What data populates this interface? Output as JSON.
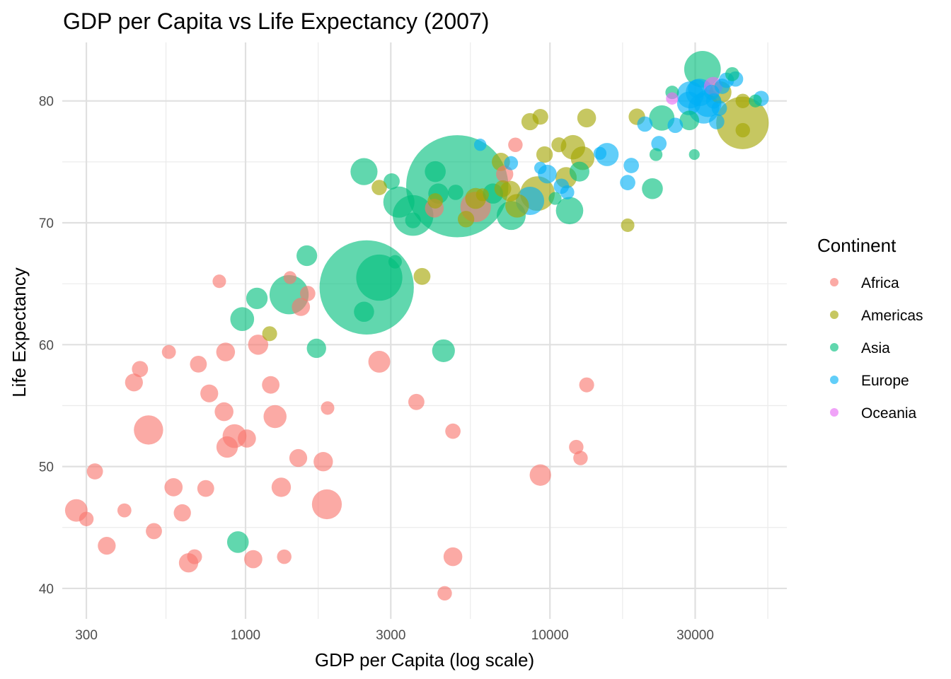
{
  "chart_data": {
    "type": "scatter",
    "title": "GDP per Capita vs Life Expectancy (2007)",
    "xlabel": "GDP per Capita (log scale)",
    "ylabel": "Life Expectancy",
    "xscale": "log10",
    "xlim": [
      250,
      60000
    ],
    "ylim": [
      37.5,
      84.8
    ],
    "x_ticks": [
      300,
      1000,
      3000,
      10000,
      30000
    ],
    "x_tick_labels": [
      "300",
      "1000",
      "3000",
      "10000",
      "30000"
    ],
    "y_ticks": [
      40,
      50,
      60,
      70,
      80
    ],
    "y_tick_labels": [
      "40",
      "50",
      "60",
      "70",
      "80"
    ],
    "grid": true,
    "legend": {
      "title": "Continent",
      "position": "right"
    },
    "colors": {
      "Africa": "#F8766D",
      "Americas": "#A3A500",
      "Asia": "#00BF7D",
      "Europe": "#00B0F6",
      "Oceania": "#E76BF3"
    },
    "point_fields": [
      "gdp_per_capita",
      "life_expectancy",
      "population_millions"
    ],
    "series": [
      {
        "name": "Africa",
        "points": [
          [
            278,
            46.4,
            35
          ],
          [
            300,
            45.7,
            8
          ],
          [
            320,
            49.6,
            12
          ],
          [
            350,
            43.5,
            17
          ],
          [
            400,
            46.4,
            7
          ],
          [
            430,
            56.9,
            17
          ],
          [
            450,
            58.0,
            12
          ],
          [
            480,
            53.0,
            72
          ],
          [
            500,
            44.7,
            12
          ],
          [
            560,
            59.4,
            7
          ],
          [
            580,
            48.3,
            18
          ],
          [
            620,
            46.2,
            15
          ],
          [
            650,
            42.1,
            22
          ],
          [
            680,
            42.6,
            9
          ],
          [
            700,
            58.4,
            14
          ],
          [
            740,
            48.2,
            14
          ],
          [
            760,
            56.0,
            17
          ],
          [
            820,
            65.2,
            6
          ],
          [
            850,
            54.5,
            20
          ],
          [
            860,
            59.4,
            20
          ],
          [
            870,
            51.6,
            30
          ],
          [
            920,
            52.5,
            41
          ],
          [
            1010,
            52.3,
            18
          ],
          [
            1060,
            42.4,
            18
          ],
          [
            1100,
            60.0,
            25
          ],
          [
            1210,
            56.7,
            16
          ],
          [
            1250,
            54.1,
            37
          ],
          [
            1310,
            48.3,
            22
          ],
          [
            1340,
            42.6,
            8
          ],
          [
            1400,
            65.5,
            5
          ],
          [
            1490,
            50.7,
            17
          ],
          [
            1520,
            63.1,
            18
          ],
          [
            1600,
            64.2,
            10
          ],
          [
            1800,
            50.4,
            22
          ],
          [
            1850,
            46.9,
            76
          ],
          [
            1860,
            54.8,
            6
          ],
          [
            2750,
            58.6,
            32
          ],
          [
            3640,
            55.3,
            12
          ],
          [
            4170,
            71.2,
            20
          ],
          [
            4510,
            39.6,
            8
          ],
          [
            4800,
            42.6,
            20
          ],
          [
            4800,
            52.9,
            10
          ],
          [
            5700,
            71.3,
            80
          ],
          [
            7100,
            74.0,
            15
          ],
          [
            7700,
            76.4,
            8
          ],
          [
            9300,
            49.3,
            30
          ],
          [
            12200,
            51.6,
            8
          ],
          [
            12600,
            50.7,
            8
          ],
          [
            13200,
            56.7,
            9
          ]
        ]
      },
      {
        "name": "Americas",
        "points": [
          [
            1200,
            60.9,
            9
          ],
          [
            2750,
            72.9,
            10
          ],
          [
            3800,
            65.6,
            14
          ],
          [
            4200,
            71.8,
            10
          ],
          [
            5300,
            70.3,
            13
          ],
          [
            5700,
            72.0,
            28
          ],
          [
            6000,
            72.3,
            5
          ],
          [
            6900,
            75.0,
            18
          ],
          [
            7000,
            72.8,
            14
          ],
          [
            7400,
            72.6,
            27
          ],
          [
            7800,
            71.4,
            40
          ],
          [
            8600,
            78.3,
            15
          ],
          [
            9100,
            72.4,
            110
          ],
          [
            9300,
            78.7,
            11
          ],
          [
            9600,
            75.6,
            13
          ],
          [
            10700,
            76.4,
            9
          ],
          [
            11300,
            73.7,
            29
          ],
          [
            11900,
            76.2,
            44
          ],
          [
            12800,
            75.3,
            40
          ],
          [
            13200,
            78.6,
            20
          ],
          [
            18000,
            69.8,
            6
          ],
          [
            19300,
            78.7,
            13
          ],
          [
            36300,
            80.7,
            33
          ],
          [
            42900,
            78.2,
            301
          ],
          [
            43000,
            77.6,
            8
          ],
          [
            43000,
            80.0,
            8
          ]
        ]
      },
      {
        "name": "Asia",
        "points": [
          [
            944,
            43.8,
            31
          ],
          [
            975,
            62.1,
            41
          ],
          [
            1090,
            63.8,
            30
          ],
          [
            1390,
            64.1,
            150
          ],
          [
            1590,
            67.3,
            27
          ],
          [
            1710,
            59.7,
            22
          ],
          [
            2450,
            62.7,
            25
          ],
          [
            2450,
            74.2,
            58
          ],
          [
            2500,
            64.7,
            1110
          ],
          [
            2750,
            65.5,
            223
          ],
          [
            3020,
            73.4,
            12
          ],
          [
            3100,
            66.8,
            6
          ],
          [
            3190,
            71.7,
            85
          ],
          [
            3550,
            70.6,
            165
          ],
          [
            3550,
            70.2,
            11
          ],
          [
            4200,
            74.2,
            28
          ],
          [
            4300,
            72.4,
            25
          ],
          [
            4900,
            72.5,
            10
          ],
          [
            4470,
            59.5,
            36
          ],
          [
            4960,
            73.0,
            1320
          ],
          [
            6500,
            72.4,
            25
          ],
          [
            7460,
            70.6,
            70
          ],
          [
            10400,
            72.0,
            5
          ],
          [
            11600,
            71.0,
            60
          ],
          [
            12500,
            74.2,
            24
          ],
          [
            21700,
            72.8,
            28
          ],
          [
            22300,
            75.6,
            5
          ],
          [
            23300,
            78.6,
            49
          ],
          [
            25200,
            80.7,
            6
          ],
          [
            28700,
            78.4,
            23
          ],
          [
            29800,
            75.6,
            2
          ],
          [
            31700,
            82.6,
            127
          ],
          [
            39700,
            82.2,
            7
          ],
          [
            47300,
            80.0,
            5
          ]
        ]
      },
      {
        "name": "Europe",
        "points": [
          [
            5900,
            76.4,
            4
          ],
          [
            7450,
            74.9,
            7
          ],
          [
            8600,
            71.8,
            66
          ],
          [
            9300,
            74.5,
            4
          ],
          [
            9800,
            74.0,
            20
          ],
          [
            10900,
            73.0,
            10
          ],
          [
            11400,
            72.5,
            7
          ],
          [
            14600,
            75.7,
            5
          ],
          [
            15400,
            75.6,
            38
          ],
          [
            18000,
            73.3,
            10
          ],
          [
            18500,
            74.7,
            10
          ],
          [
            20500,
            78.1,
            10
          ],
          [
            22800,
            76.5,
            10
          ],
          [
            25800,
            78.0,
            10
          ],
          [
            28600,
            79.8,
            40
          ],
          [
            28900,
            80.5,
            58
          ],
          [
            30500,
            81.0,
            20
          ],
          [
            31000,
            80.7,
            61
          ],
          [
            32000,
            79.4,
            82
          ],
          [
            33000,
            79.8,
            60
          ],
          [
            34000,
            80.7,
            10
          ],
          [
            34500,
            80.0,
            10
          ],
          [
            35300,
            78.3,
            10
          ],
          [
            36000,
            79.4,
            10
          ],
          [
            36800,
            81.2,
            10
          ],
          [
            38000,
            81.7,
            10
          ],
          [
            40700,
            81.8,
            10
          ],
          [
            49400,
            80.2,
            10
          ]
        ]
      },
      {
        "name": "Oceania",
        "points": [
          [
            25200,
            80.2,
            4
          ],
          [
            34400,
            81.2,
            20
          ]
        ]
      }
    ]
  }
}
